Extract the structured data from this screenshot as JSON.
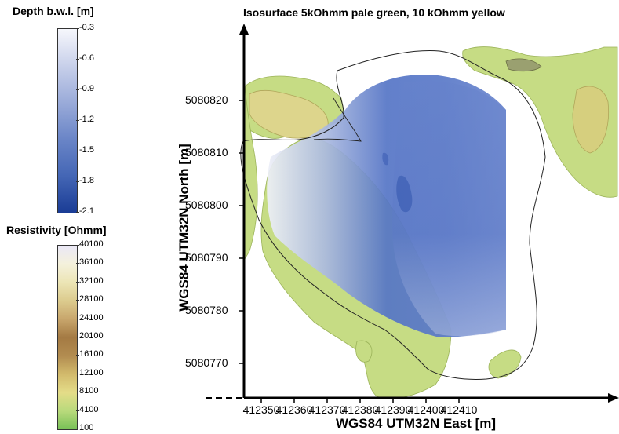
{
  "chart_data": {
    "type": "heatmap",
    "title": "Isosurface 5kOhmm pale green, 10 kOhmm yellow",
    "xlabel": "WGS84 UTM32N East [m]",
    "ylabel": "WGS84 UTM32N North [m]",
    "x_ticks": [
      "412350",
      "412360",
      "412370",
      "412380",
      "412390",
      "412400",
      "412410"
    ],
    "x_tick_values": [
      412350,
      412360,
      412370,
      412380,
      412390,
      412400,
      412410
    ],
    "y_ticks": [
      "5080820",
      "5080810",
      "5080800",
      "5080790",
      "5080780",
      "5080770"
    ],
    "y_tick_values": [
      5080820,
      5080810,
      5080800,
      5080790,
      5080780,
      5080770
    ],
    "colorbars": [
      {
        "title": "Depth b.w.l. [m]",
        "ticks": [
          "-0.3",
          "-0.6",
          "-0.9",
          "-1.2",
          "-1.5",
          "-1.8",
          "-2.1"
        ],
        "range": [
          -2.1,
          -0.3
        ],
        "colors": [
          "#f4f5fb",
          "#c9d1ea",
          "#9eaedb",
          "#6f88c9",
          "#4a6ab8",
          "#2c4fa6",
          "#1b3d96"
        ]
      },
      {
        "title": "Resistivity [Ohmm]",
        "ticks": [
          "40100",
          "36100",
          "32100",
          "28100",
          "24100",
          "20100",
          "16100",
          "12100",
          "8100",
          "4100",
          "100"
        ],
        "range": [
          100,
          40100
        ],
        "colors": [
          "#e8e6f5",
          "#f3f0d8",
          "#e9e2b0",
          "#d8c688",
          "#c4a266",
          "#a97e45",
          "#b89557",
          "#d6c070",
          "#e6e08a",
          "#b7d97a",
          "#7fc25a"
        ]
      }
    ],
    "isosurfaces": [
      {
        "resistivity": 5000,
        "color": "pale green"
      },
      {
        "resistivity": 10000,
        "color": "yellow"
      }
    ],
    "grid": false
  },
  "colors": {
    "isosurface_green": "#c6dc84",
    "isosurface_yellow": "#ddd58c",
    "depth_blue": "#4f70c4",
    "depth_light": "#eef0f8"
  }
}
